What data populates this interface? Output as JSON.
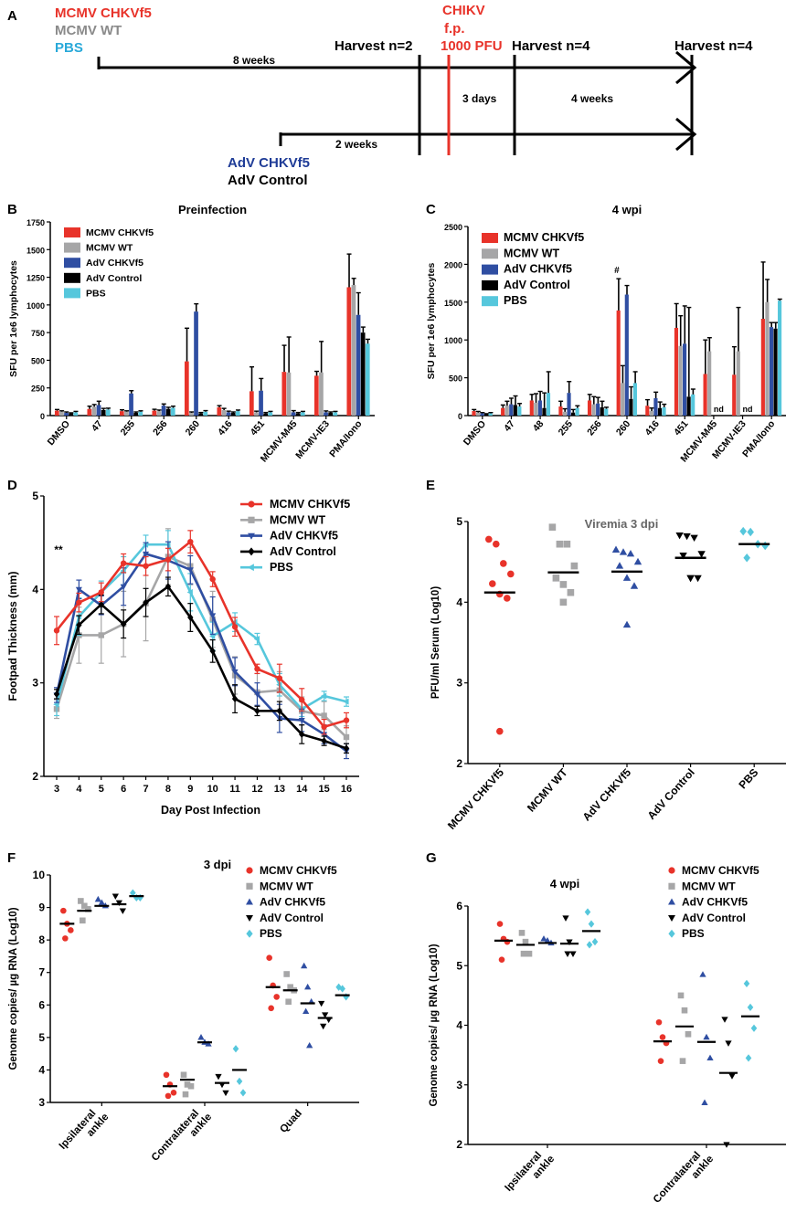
{
  "colors": {
    "mcmv_chkvf5": "#e8332a",
    "mcmv_wt": "#a6a6a7",
    "adv_chkvf5": "#2f4ea2",
    "adv_control": "#000000",
    "pbs": "#56c7dc",
    "chikv_line": "#e8332a"
  },
  "panel_letters": [
    "A",
    "B",
    "C",
    "D",
    "E",
    "F",
    "G"
  ],
  "timeline": {
    "groups_top": [
      "MCMV CHKVf5",
      "MCMV WT",
      "PBS"
    ],
    "groups_bottom": [
      "AdV CHKVf5",
      "AdV Control"
    ],
    "harvest_labels": [
      "Harvest n=2",
      "Harvest n=4",
      "Harvest n=4"
    ],
    "chikv_label": [
      "CHIKV",
      "f.p.",
      "1000 PFU"
    ],
    "interval_labels": [
      "8 weeks",
      "2 weeks",
      "3 days",
      "4 weeks"
    ]
  },
  "chart_data": [
    {
      "panel": "B",
      "type": "bar",
      "title": "Preinfection",
      "ylabel": "SFU per 1e6 lymphocytes",
      "xlabel": "",
      "ylim": [
        0,
        1750
      ],
      "yticks": [
        0,
        250,
        500,
        750,
        1000,
        1250,
        1500,
        1750
      ],
      "categories": [
        "DMSO",
        "47",
        "255",
        "256",
        "260",
        "416",
        "451",
        "MCMV-M45",
        "MCMV-IE3",
        "PMA/Iono"
      ],
      "legend": [
        "MCMV CHKVf5",
        "MCMV WT",
        "AdV CHKVf5",
        "AdV Control",
        "PBS"
      ],
      "series": [
        {
          "name": "MCMV CHKVf5",
          "values": [
            45,
            60,
            40,
            45,
            490,
            75,
            220,
            395,
            360,
            1160
          ],
          "errors": [
            10,
            25,
            12,
            12,
            300,
            15,
            220,
            240,
            40,
            300
          ]
        },
        {
          "name": "MCMV WT",
          "values": [
            35,
            80,
            35,
            40,
            25,
            50,
            30,
            390,
            390,
            1180
          ],
          "errors": [
            8,
            20,
            8,
            10,
            8,
            15,
            10,
            320,
            280,
            60
          ]
        },
        {
          "name": "AdV CHKVf5",
          "values": [
            25,
            95,
            200,
            90,
            940,
            30,
            225,
            30,
            30,
            910
          ],
          "errors": [
            8,
            35,
            25,
            15,
            70,
            10,
            110,
            15,
            12,
            200
          ]
        },
        {
          "name": "AdV Control",
          "values": [
            20,
            50,
            25,
            60,
            20,
            25,
            20,
            20,
            25,
            750
          ],
          "errors": [
            5,
            15,
            8,
            15,
            8,
            8,
            8,
            8,
            8,
            50
          ]
        },
        {
          "name": "PBS",
          "values": [
            30,
            55,
            35,
            70,
            35,
            40,
            30,
            30,
            30,
            650
          ],
          "errors": [
            8,
            12,
            8,
            15,
            10,
            10,
            8,
            8,
            8,
            40
          ]
        }
      ]
    },
    {
      "panel": "C",
      "type": "bar",
      "title": "4 wpi",
      "ylabel": "SFU per 1e6 lymphocytes",
      "xlabel": "",
      "ylim": [
        0,
        2500
      ],
      "yticks": [
        0,
        500,
        1000,
        1500,
        2000,
        2500
      ],
      "categories": [
        "DMSO",
        "47",
        "48",
        "255",
        "256",
        "260",
        "416",
        "451",
        "MCMV-M45",
        "MCMV-IE3",
        "PMA/Iono"
      ],
      "legend": [
        "MCMV CHKVf5",
        "MCMV WT",
        "AdV CHKVf5",
        "AdV Control",
        "PBS"
      ],
      "annotation_hash": "#",
      "annotation_nd": "nd",
      "series": [
        {
          "name": "MCMV CHKVf5",
          "values": [
            60,
            100,
            200,
            120,
            200,
            1390,
            130,
            1160,
            550,
            540,
            1280
          ],
          "errors": [
            20,
            40,
            80,
            70,
            80,
            420,
            80,
            320,
            450,
            370,
            750
          ]
        },
        {
          "name": "MCMV WT",
          "values": [
            40,
            130,
            170,
            50,
            150,
            430,
            60,
            920,
            850,
            850,
            1500
          ],
          "errors": [
            15,
            60,
            120,
            40,
            100,
            230,
            40,
            400,
            180,
            580,
            300
          ]
        },
        {
          "name": "AdV CHKVf5",
          "values": [
            30,
            150,
            200,
            300,
            160,
            1600,
            230,
            950,
            null,
            null,
            1170
          ],
          "errors": [
            10,
            80,
            120,
            150,
            80,
            120,
            80,
            500,
            0,
            0,
            60
          ]
        },
        {
          "name": "AdV Control",
          "values": [
            20,
            140,
            100,
            40,
            110,
            220,
            100,
            250,
            null,
            null,
            1150
          ],
          "errors": [
            5,
            120,
            200,
            40,
            80,
            160,
            80,
            1180,
            0,
            0,
            80
          ]
        },
        {
          "name": "PBS",
          "values": [
            30,
            120,
            300,
            100,
            90,
            430,
            110,
            280,
            null,
            null,
            1520
          ],
          "errors": [
            10,
            40,
            280,
            30,
            20,
            150,
            40,
            70,
            0,
            0,
            20
          ]
        }
      ]
    },
    {
      "panel": "D",
      "type": "line",
      "title": "",
      "xlabel": "Day Post Infection",
      "ylabel": "Footpad Thickness (mm)",
      "ylim": [
        2,
        5
      ],
      "yticks": [
        2,
        3,
        4,
        5
      ],
      "x": [
        3,
        4,
        5,
        6,
        7,
        8,
        9,
        10,
        11,
        12,
        13,
        14,
        15,
        16
      ],
      "annotation": "**",
      "series": [
        {
          "name": "MCMV CHKVf5",
          "marker": "circle",
          "values": [
            3.56,
            3.86,
            3.97,
            4.28,
            4.25,
            4.32,
            4.51,
            4.11,
            3.6,
            3.15,
            3.05,
            2.82,
            2.53,
            2.6
          ],
          "errors": [
            0.15,
            0.1,
            0.1,
            0.1,
            0.1,
            0.12,
            0.12,
            0.08,
            0.1,
            0.05,
            0.15,
            0.12,
            0.08,
            0.08
          ]
        },
        {
          "name": "MCMV WT",
          "marker": "square",
          "values": [
            2.72,
            3.51,
            3.51,
            3.63,
            3.85,
            4.35,
            4.25,
            3.68,
            3.08,
            2.9,
            2.92,
            2.7,
            2.65,
            2.42
          ],
          "errors": [
            0.1,
            0.3,
            0.3,
            0.35,
            0.4,
            0.3,
            0.2,
            0.3,
            0.2,
            0.2,
            0.2,
            0.15,
            0.15,
            0.12
          ]
        },
        {
          "name": "AdV CHKVf5",
          "marker": "triangle-down",
          "values": [
            2.87,
            4.0,
            3.83,
            4.03,
            4.38,
            4.31,
            4.21,
            3.72,
            3.12,
            2.88,
            2.62,
            2.6,
            2.45,
            2.27
          ],
          "errors": [
            0.08,
            0.1,
            0.1,
            0.2,
            0.12,
            0.2,
            0.15,
            0.2,
            0.15,
            0.12,
            0.15,
            0.12,
            0.1,
            0.08
          ]
        },
        {
          "name": "AdV Control",
          "marker": "diamond",
          "values": [
            2.88,
            3.62,
            3.84,
            3.63,
            3.86,
            4.03,
            3.7,
            3.34,
            2.83,
            2.7,
            2.7,
            2.45,
            2.38,
            2.3
          ],
          "errors": [
            0.05,
            0.1,
            0.1,
            0.15,
            0.15,
            0.1,
            0.15,
            0.12,
            0.15,
            0.05,
            0.1,
            0.1,
            0.05,
            0.05
          ]
        },
        {
          "name": "PBS",
          "marker": "triangle-left",
          "values": [
            2.77,
            3.71,
            3.97,
            4.2,
            4.48,
            4.48,
            3.97,
            3.5,
            3.65,
            3.47,
            2.98,
            2.72,
            2.86,
            2.8
          ],
          "errors": [
            0.12,
            0.2,
            0.12,
            0.15,
            0.1,
            0.15,
            0.2,
            0.15,
            0.1,
            0.06,
            0.12,
            0.08,
            0.05,
            0.05
          ]
        }
      ]
    },
    {
      "panel": "E",
      "type": "scatter",
      "title": "Viremia 3 dpi",
      "ylabel": "PFU/ml Serum (Log10)",
      "xlabel": "",
      "ylim": [
        2,
        5
      ],
      "yticks": [
        2,
        3,
        4,
        5
      ],
      "categories": [
        "MCMV CHKVf5",
        "MCMV WT",
        "AdV CHKVf5",
        "AdV Control",
        "PBS"
      ],
      "groups": [
        {
          "name": "MCMV CHKVf5",
          "marker": "circle",
          "points": [
            4.78,
            4.72,
            4.48,
            4.35,
            4.23,
            4.1,
            4.05,
            2.4
          ],
          "mean": 4.12
        },
        {
          "name": "MCMV WT",
          "marker": "square",
          "points": [
            4.93,
            4.72,
            4.72,
            4.45,
            4.3,
            4.22,
            4.12,
            4.0
          ],
          "mean": 4.37
        },
        {
          "name": "AdV CHKVf5",
          "marker": "triangle-up",
          "points": [
            4.65,
            4.62,
            4.6,
            4.5,
            4.45,
            4.3,
            4.2,
            3.72
          ],
          "mean": 4.38
        },
        {
          "name": "AdV Control",
          "marker": "triangle-down",
          "points": [
            4.83,
            4.82,
            4.8,
            4.6,
            4.58,
            4.3,
            4.3,
            4.3
          ],
          "mean": 4.55
        },
        {
          "name": "PBS",
          "marker": "diamond",
          "points": [
            4.88,
            4.87,
            4.72,
            4.7,
            4.55
          ],
          "mean": 4.72
        }
      ]
    },
    {
      "panel": "F",
      "type": "scatter",
      "title": "3 dpi",
      "ylabel": "Genome copies/ µg RNA (Log10)",
      "xlabel": "",
      "ylim": [
        3,
        10
      ],
      "yticks": [
        3,
        4,
        5,
        6,
        7,
        8,
        9,
        10
      ],
      "categories": [
        "Ipsilateral ankle",
        "Contralateral ankle",
        "Quad"
      ],
      "legend": [
        "MCMV CHKVf5",
        "MCMV WT",
        "AdV CHKVf5",
        "AdV Control",
        "PBS"
      ],
      "groups": [
        {
          "tissue": "Ipsilateral ankle",
          "name": "MCMV CHKVf5",
          "marker": "circle",
          "points": [
            8.9,
            8.5,
            8.3,
            8.05
          ],
          "mean": 8.5
        },
        {
          "tissue": "Ipsilateral ankle",
          "name": "MCMV WT",
          "marker": "square",
          "points": [
            9.2,
            9.05,
            8.95,
            8.6
          ],
          "mean": 8.9
        },
        {
          "tissue": "Ipsilateral ankle",
          "name": "AdV CHKVf5",
          "marker": "triangle-up",
          "points": [
            9.25,
            9.15,
            9.05
          ],
          "mean": 9.05
        },
        {
          "tissue": "Ipsilateral ankle",
          "name": "AdV Control",
          "marker": "triangle-down",
          "points": [
            9.35,
            9.15,
            8.9
          ],
          "mean": 9.1
        },
        {
          "tissue": "Ipsilateral ankle",
          "name": "PBS",
          "marker": "diamond",
          "points": [
            9.45,
            9.3,
            9.3
          ],
          "mean": 9.35
        },
        {
          "tissue": "Contralateral ankle",
          "name": "MCMV CHKVf5",
          "marker": "circle",
          "points": [
            3.85,
            3.55,
            3.3,
            3.2
          ],
          "mean": 3.5
        },
        {
          "tissue": "Contralateral ankle",
          "name": "MCMV WT",
          "marker": "square",
          "points": [
            3.85,
            3.55,
            3.5,
            3.25
          ],
          "mean": 3.7
        },
        {
          "tissue": "Contralateral ankle",
          "name": "AdV CHKVf5",
          "marker": "triangle-up",
          "points": [
            5.0,
            4.85,
            4.8
          ],
          "mean": 4.85
        },
        {
          "tissue": "Contralateral ankle",
          "name": "AdV Control",
          "marker": "triangle-down",
          "points": [
            3.8,
            3.55,
            3.3
          ],
          "mean": 3.6
        },
        {
          "tissue": "Contralateral ankle",
          "name": "PBS",
          "marker": "diamond",
          "points": [
            4.65,
            3.65,
            3.3
          ],
          "mean": 4.0
        },
        {
          "tissue": "Quad",
          "name": "MCMV CHKVf5",
          "marker": "circle",
          "points": [
            7.45,
            6.6,
            6.25,
            5.9
          ],
          "mean": 6.55
        },
        {
          "tissue": "Quad",
          "name": "MCMV WT",
          "marker": "square",
          "points": [
            6.95,
            6.55,
            6.45,
            6.1
          ],
          "mean": 6.45
        },
        {
          "tissue": "Quad",
          "name": "AdV CHKVf5",
          "marker": "triangle-up",
          "points": [
            7.2,
            6.55,
            6.1,
            5.8,
            4.75
          ],
          "mean": 6.05
        },
        {
          "tissue": "Quad",
          "name": "AdV Control",
          "marker": "triangle-down",
          "points": [
            6.05,
            5.7,
            5.55,
            5.35
          ],
          "mean": 5.6
        },
        {
          "tissue": "Quad",
          "name": "PBS",
          "marker": "diamond",
          "points": [
            6.55,
            6.5,
            6.25
          ],
          "mean": 6.3
        }
      ]
    },
    {
      "panel": "G",
      "type": "scatter",
      "title": "4 wpi",
      "ylabel": "Genome copies/ µg RNA (Log10)",
      "xlabel": "",
      "ylim": [
        2,
        6
      ],
      "yticks": [
        2,
        3,
        4,
        5,
        6
      ],
      "categories": [
        "Ipsilateral ankle",
        "Contralateral ankle"
      ],
      "legend": [
        "MCMV CHKVf5",
        "MCMV WT",
        "AdV CHKVf5",
        "AdV Control",
        "PBS"
      ],
      "groups": [
        {
          "tissue": "Ipsilateral ankle",
          "name": "MCMV CHKVf5",
          "marker": "circle",
          "points": [
            5.7,
            5.45,
            5.4,
            5.1
          ],
          "mean": 5.42
        },
        {
          "tissue": "Ipsilateral ankle",
          "name": "MCMV WT",
          "marker": "square",
          "points": [
            5.55,
            5.4,
            5.2,
            5.2
          ],
          "mean": 5.35
        },
        {
          "tissue": "Ipsilateral ankle",
          "name": "AdV CHKVf5",
          "marker": "triangle-up",
          "points": [
            5.45,
            5.42,
            5.38
          ],
          "mean": 5.38
        },
        {
          "tissue": "Ipsilateral ankle",
          "name": "AdV Control",
          "marker": "triangle-down",
          "points": [
            5.8,
            5.4,
            5.2,
            5.2
          ],
          "mean": 5.37
        },
        {
          "tissue": "Ipsilateral ankle",
          "name": "PBS",
          "marker": "diamond",
          "points": [
            5.9,
            5.7,
            5.4,
            5.35
          ],
          "mean": 5.58
        },
        {
          "tissue": "Contralateral ankle",
          "name": "MCMV CHKVf5",
          "marker": "circle",
          "points": [
            4.05,
            3.8,
            3.7,
            3.4
          ],
          "mean": 3.73
        },
        {
          "tissue": "Contralateral ankle",
          "name": "MCMV WT",
          "marker": "square",
          "points": [
            4.5,
            4.25,
            3.85,
            3.4
          ],
          "mean": 3.98
        },
        {
          "tissue": "Contralateral ankle",
          "name": "AdV CHKVf5",
          "marker": "triangle-up",
          "points": [
            4.85,
            3.8,
            3.45,
            2.7
          ],
          "mean": 3.72
        },
        {
          "tissue": "Contralateral ankle",
          "name": "AdV Control",
          "marker": "triangle-down",
          "points": [
            4.1,
            3.7,
            3.15,
            2.0
          ],
          "mean": 3.2
        },
        {
          "tissue": "Contralateral ankle",
          "name": "PBS",
          "marker": "diamond",
          "points": [
            4.7,
            4.3,
            3.95,
            3.45
          ],
          "mean": 4.15
        }
      ]
    }
  ]
}
